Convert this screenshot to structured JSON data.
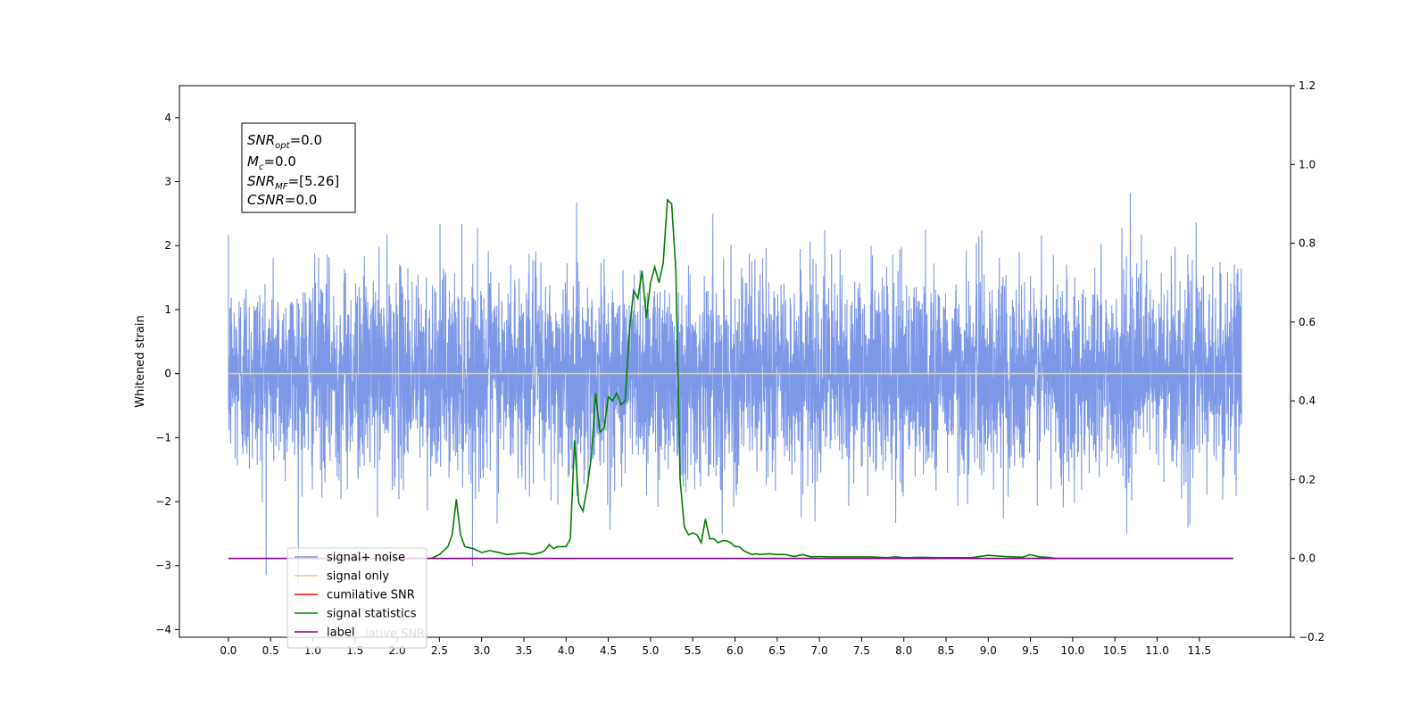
{
  "chart_data": {
    "type": "line",
    "ylabel": "Whitened strain",
    "x_ticks": [
      "0.0",
      "0.5",
      "1.0",
      "1.5",
      "2.0",
      "2.5",
      "3.0",
      "3.5",
      "4.0",
      "4.5",
      "5.0",
      "5.5",
      "6.0",
      "6.5",
      "7.0",
      "7.5",
      "8.0",
      "8.5",
      "9.0",
      "9.5",
      "10.0",
      "10.5",
      "11.0",
      "11.5"
    ],
    "y_left_ticks": [
      "−4",
      "−3",
      "−2",
      "−1",
      "0",
      "1",
      "2",
      "3",
      "4"
    ],
    "y_right_ticks": [
      "−0.2",
      "0.0",
      "0.2",
      "0.4",
      "0.6",
      "0.8",
      "1.0",
      "1.2"
    ],
    "xlim": [
      -0.58,
      12.58
    ],
    "ylim_left": [
      -4.12,
      4.5
    ],
    "ylim_right": [
      -0.2,
      1.2
    ],
    "grid": false,
    "legend_placement": "lower-left",
    "annotation": {
      "snr_opt": {
        "base": "SNR",
        "sub": "opt",
        "value": "=0.0"
      },
      "mc": {
        "base": "M",
        "sub": "c",
        "value": "=0.0"
      },
      "snr_mf": {
        "base": "SNR",
        "sub": "MF",
        "value": "=[5.26]"
      },
      "csnr": {
        "base": "CSNR",
        "value": "=0.0"
      }
    },
    "series": [
      {
        "name": "signal+ noise",
        "axis": "left",
        "color": "#7b96e8",
        "x_range": [
          0,
          12
        ],
        "amplitude_std": 0.78,
        "note_values": "dense noise trace spanning roughly -3.7 to 4.1"
      },
      {
        "name": "signal only",
        "axis": "left",
        "color": "#f5c77e",
        "x": [
          0,
          12
        ],
        "values": [
          0,
          0
        ]
      },
      {
        "name": "cumilative SNR",
        "axis": "right",
        "color": "#ff0000",
        "x": [],
        "values": []
      },
      {
        "name": "signal statistics",
        "axis": "right",
        "color": "#008000",
        "x": [
          2.4,
          2.5,
          2.6,
          2.65,
          2.7,
          2.75,
          2.8,
          2.9,
          3.0,
          3.1,
          3.2,
          3.3,
          3.4,
          3.5,
          3.6,
          3.7,
          3.75,
          3.8,
          3.85,
          3.9,
          3.95,
          4.0,
          4.05,
          4.1,
          4.15,
          4.2,
          4.25,
          4.3,
          4.35,
          4.4,
          4.45,
          4.5,
          4.55,
          4.6,
          4.65,
          4.7,
          4.75,
          4.8,
          4.85,
          4.9,
          4.95,
          5.0,
          5.05,
          5.1,
          5.15,
          5.2,
          5.25,
          5.3,
          5.35,
          5.4,
          5.45,
          5.5,
          5.55,
          5.6,
          5.65,
          5.7,
          5.75,
          5.8,
          5.85,
          5.9,
          5.95,
          6.0,
          6.05,
          6.1,
          6.15,
          6.2,
          6.25,
          6.3,
          6.4,
          6.5,
          6.6,
          6.7,
          6.8,
          6.9,
          7.0,
          7.1,
          7.2,
          7.3,
          7.4,
          7.5,
          7.6,
          7.7,
          7.8,
          7.9,
          8.0,
          8.2,
          8.4,
          8.6,
          8.8,
          9.0,
          9.2,
          9.3,
          9.4,
          9.5,
          9.6,
          9.7,
          9.8,
          9.9,
          10.0,
          10.2,
          10.5,
          11.0,
          11.5,
          11.9
        ],
        "values": [
          0.0,
          0.01,
          0.03,
          0.06,
          0.15,
          0.06,
          0.03,
          0.025,
          0.015,
          0.02,
          0.015,
          0.01,
          0.012,
          0.014,
          0.01,
          0.015,
          0.02,
          0.035,
          0.025,
          0.03,
          0.03,
          0.03,
          0.05,
          0.3,
          0.14,
          0.12,
          0.18,
          0.26,
          0.42,
          0.32,
          0.33,
          0.41,
          0.4,
          0.42,
          0.39,
          0.4,
          0.58,
          0.68,
          0.66,
          0.73,
          0.61,
          0.7,
          0.74,
          0.7,
          0.75,
          0.91,
          0.9,
          0.73,
          0.2,
          0.08,
          0.06,
          0.065,
          0.06,
          0.04,
          0.1,
          0.05,
          0.05,
          0.04,
          0.045,
          0.045,
          0.04,
          0.03,
          0.03,
          0.02,
          0.015,
          0.01,
          0.012,
          0.01,
          0.012,
          0.01,
          0.01,
          0.005,
          0.01,
          0.004,
          0.005,
          0.004,
          0.004,
          0.004,
          0.004,
          0.004,
          0.004,
          0.003,
          0.002,
          0.004,
          0.002,
          0.003,
          0.002,
          0.002,
          0.002,
          0.008,
          0.005,
          0.004,
          0.003,
          0.01,
          0.004,
          0.003,
          0.0,
          0.0,
          0.0,
          0.0,
          0.0,
          0.0,
          0.0,
          0.0
        ]
      },
      {
        "name": "label",
        "axis": "right",
        "color": "#800080",
        "x": [
          0,
          11.9
        ],
        "values": [
          0,
          0
        ]
      },
      {
        "name": "cumilative SNR",
        "axis": "right",
        "color": "#ffffff",
        "hidden_behind_legend": true,
        "x": [],
        "values": []
      }
    ]
  },
  "legend": {
    "items": [
      {
        "label": "signal+ noise",
        "color": "#7b96e8"
      },
      {
        "label": "signal only",
        "color": "#f5c77e"
      },
      {
        "label": "cumilative SNR",
        "color": "#ff0000"
      },
      {
        "label": "signal statistics",
        "color": "#008000"
      },
      {
        "label": "label",
        "color": "#800080"
      }
    ],
    "ghost_label": "lative SNR"
  }
}
